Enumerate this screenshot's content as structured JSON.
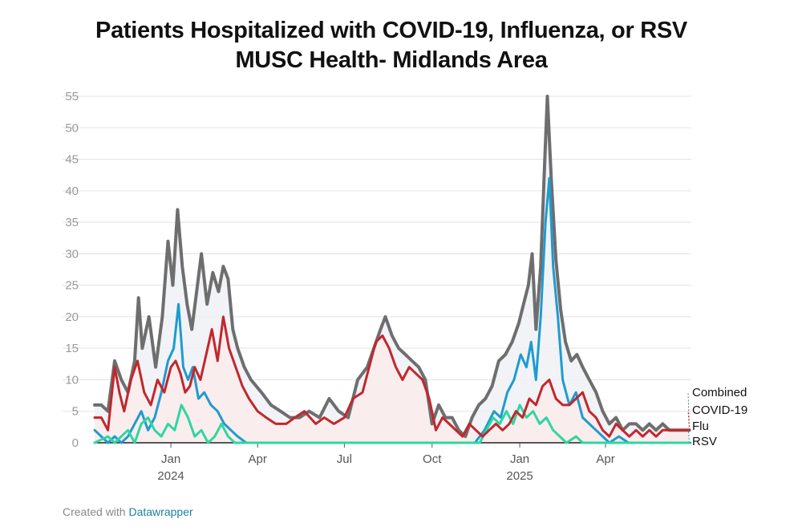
{
  "title_line1": "Patients Hospitalized with COVID-19, Influenza, or RSV",
  "title_line2": "MUSC Health- Midlands Area",
  "credit": {
    "prefix": "Created with ",
    "link": "Datawrapper"
  },
  "chart_data": {
    "type": "line",
    "y_ticks": [
      0,
      5,
      10,
      15,
      20,
      25,
      30,
      35,
      40,
      45,
      50,
      55
    ],
    "ylim": [
      0,
      55
    ],
    "xlim": [
      "2023-10-13",
      "2025-06-30"
    ],
    "x_ticks": [
      {
        "date": "2024-01-01",
        "label": "Jan",
        "sub": "2024"
      },
      {
        "date": "2024-04-01",
        "label": "Apr",
        "sub": ""
      },
      {
        "date": "2024-07-01",
        "label": "Jul",
        "sub": ""
      },
      {
        "date": "2024-10-01",
        "label": "Oct",
        "sub": ""
      },
      {
        "date": "2025-01-01",
        "label": "Jan",
        "sub": "2025"
      },
      {
        "date": "2025-04-01",
        "label": "Apr",
        "sub": ""
      }
    ],
    "grid": true,
    "legend": "right-end labels",
    "series": [
      {
        "name": "Combined",
        "color": "#6e6e6e",
        "fill": "#eef1f4",
        "points": [
          [
            "2023-10-13",
            6
          ],
          [
            "2023-10-20",
            6
          ],
          [
            "2023-10-27",
            5
          ],
          [
            "2023-11-03",
            13
          ],
          [
            "2023-11-10",
            10
          ],
          [
            "2023-11-17",
            8
          ],
          [
            "2023-11-24",
            13
          ],
          [
            "2023-11-28",
            23
          ],
          [
            "2023-12-02",
            15
          ],
          [
            "2023-12-09",
            20
          ],
          [
            "2023-12-16",
            12
          ],
          [
            "2023-12-23",
            20
          ],
          [
            "2023-12-29",
            32
          ],
          [
            "2024-01-03",
            25
          ],
          [
            "2024-01-08",
            37
          ],
          [
            "2024-01-13",
            28
          ],
          [
            "2024-01-18",
            22
          ],
          [
            "2024-01-23",
            18
          ],
          [
            "2024-01-28",
            24
          ],
          [
            "2024-02-02",
            30
          ],
          [
            "2024-02-08",
            22
          ],
          [
            "2024-02-14",
            27
          ],
          [
            "2024-02-20",
            24
          ],
          [
            "2024-02-25",
            28
          ],
          [
            "2024-03-01",
            26
          ],
          [
            "2024-03-06",
            18
          ],
          [
            "2024-03-11",
            15
          ],
          [
            "2024-03-18",
            12
          ],
          [
            "2024-03-25",
            10
          ],
          [
            "2024-04-05",
            8
          ],
          [
            "2024-04-15",
            6
          ],
          [
            "2024-04-25",
            5
          ],
          [
            "2024-05-05",
            4
          ],
          [
            "2024-05-15",
            4
          ],
          [
            "2024-05-25",
            5
          ],
          [
            "2024-06-05",
            4
          ],
          [
            "2024-06-15",
            7
          ],
          [
            "2024-06-25",
            5
          ],
          [
            "2024-07-05",
            4
          ],
          [
            "2024-07-15",
            10
          ],
          [
            "2024-07-25",
            12
          ],
          [
            "2024-08-01",
            15
          ],
          [
            "2024-08-08",
            18
          ],
          [
            "2024-08-13",
            20
          ],
          [
            "2024-08-20",
            17
          ],
          [
            "2024-08-27",
            15
          ],
          [
            "2024-09-03",
            14
          ],
          [
            "2024-09-10",
            13
          ],
          [
            "2024-09-17",
            12
          ],
          [
            "2024-09-24",
            10
          ],
          [
            "2024-10-01",
            3
          ],
          [
            "2024-10-08",
            6
          ],
          [
            "2024-10-15",
            4
          ],
          [
            "2024-10-22",
            4
          ],
          [
            "2024-10-29",
            2
          ],
          [
            "2024-11-05",
            1
          ],
          [
            "2024-11-12",
            4
          ],
          [
            "2024-11-19",
            6
          ],
          [
            "2024-11-26",
            7
          ],
          [
            "2024-12-03",
            9
          ],
          [
            "2024-12-10",
            13
          ],
          [
            "2024-12-17",
            14
          ],
          [
            "2024-12-24",
            16
          ],
          [
            "2024-12-31",
            19
          ],
          [
            "2025-01-05",
            22
          ],
          [
            "2025-01-10",
            25
          ],
          [
            "2025-01-14",
            30
          ],
          [
            "2025-01-18",
            18
          ],
          [
            "2025-01-23",
            28
          ],
          [
            "2025-01-27",
            44
          ],
          [
            "2025-01-30",
            55
          ],
          [
            "2025-02-03",
            42
          ],
          [
            "2025-02-08",
            29
          ],
          [
            "2025-02-13",
            21
          ],
          [
            "2025-02-18",
            16
          ],
          [
            "2025-02-24",
            13
          ],
          [
            "2025-03-02",
            14
          ],
          [
            "2025-03-08",
            12
          ],
          [
            "2025-03-15",
            10
          ],
          [
            "2025-03-22",
            8
          ],
          [
            "2025-03-29",
            5
          ],
          [
            "2025-04-05",
            3
          ],
          [
            "2025-04-12",
            4
          ],
          [
            "2025-04-19",
            2
          ],
          [
            "2025-04-26",
            3
          ],
          [
            "2025-05-03",
            3
          ],
          [
            "2025-05-10",
            2
          ],
          [
            "2025-05-17",
            3
          ],
          [
            "2025-05-24",
            2
          ],
          [
            "2025-05-31",
            3
          ],
          [
            "2025-06-07",
            2
          ],
          [
            "2025-06-14",
            2
          ],
          [
            "2025-06-21",
            2
          ],
          [
            "2025-06-28",
            2
          ]
        ]
      },
      {
        "name": "COVID-19",
        "color": "#c1272d",
        "fill": "#fbebeb",
        "points": [
          [
            "2023-10-13",
            4
          ],
          [
            "2023-10-20",
            4
          ],
          [
            "2023-10-27",
            2
          ],
          [
            "2023-11-03",
            12
          ],
          [
            "2023-11-08",
            8
          ],
          [
            "2023-11-13",
            5
          ],
          [
            "2023-11-20",
            10
          ],
          [
            "2023-11-27",
            13
          ],
          [
            "2023-12-04",
            8
          ],
          [
            "2023-12-11",
            6
          ],
          [
            "2023-12-18",
            10
          ],
          [
            "2023-12-25",
            8
          ],
          [
            "2024-01-01",
            12
          ],
          [
            "2024-01-06",
            13
          ],
          [
            "2024-01-11",
            11
          ],
          [
            "2024-01-16",
            8
          ],
          [
            "2024-01-21",
            9
          ],
          [
            "2024-01-26",
            12
          ],
          [
            "2024-02-01",
            10
          ],
          [
            "2024-02-07",
            14
          ],
          [
            "2024-02-13",
            18
          ],
          [
            "2024-02-19",
            13
          ],
          [
            "2024-02-25",
            20
          ],
          [
            "2024-03-02",
            15
          ],
          [
            "2024-03-09",
            12
          ],
          [
            "2024-03-16",
            9
          ],
          [
            "2024-03-23",
            7
          ],
          [
            "2024-04-01",
            5
          ],
          [
            "2024-04-10",
            4
          ],
          [
            "2024-04-20",
            3
          ],
          [
            "2024-05-01",
            3
          ],
          [
            "2024-05-10",
            4
          ],
          [
            "2024-05-20",
            5
          ],
          [
            "2024-06-01",
            3
          ],
          [
            "2024-06-10",
            4
          ],
          [
            "2024-06-20",
            3
          ],
          [
            "2024-07-01",
            4
          ],
          [
            "2024-07-10",
            7
          ],
          [
            "2024-07-20",
            8
          ],
          [
            "2024-07-27",
            12
          ],
          [
            "2024-08-03",
            16
          ],
          [
            "2024-08-10",
            17
          ],
          [
            "2024-08-17",
            15
          ],
          [
            "2024-08-24",
            12
          ],
          [
            "2024-08-31",
            10
          ],
          [
            "2024-09-07",
            12
          ],
          [
            "2024-09-14",
            11
          ],
          [
            "2024-09-21",
            10
          ],
          [
            "2024-09-28",
            7
          ],
          [
            "2024-10-05",
            2
          ],
          [
            "2024-10-12",
            4
          ],
          [
            "2024-10-19",
            3
          ],
          [
            "2024-10-26",
            2
          ],
          [
            "2024-11-02",
            1
          ],
          [
            "2024-11-09",
            3
          ],
          [
            "2024-11-16",
            2
          ],
          [
            "2024-11-23",
            1
          ],
          [
            "2024-11-30",
            2
          ],
          [
            "2024-12-07",
            3
          ],
          [
            "2024-12-14",
            2
          ],
          [
            "2024-12-21",
            3
          ],
          [
            "2024-12-28",
            5
          ],
          [
            "2025-01-04",
            4
          ],
          [
            "2025-01-11",
            7
          ],
          [
            "2025-01-18",
            6
          ],
          [
            "2025-01-25",
            9
          ],
          [
            "2025-02-01",
            10
          ],
          [
            "2025-02-08",
            7
          ],
          [
            "2025-02-15",
            6
          ],
          [
            "2025-02-22",
            6
          ],
          [
            "2025-03-01",
            7
          ],
          [
            "2025-03-08",
            8
          ],
          [
            "2025-03-15",
            5
          ],
          [
            "2025-03-22",
            4
          ],
          [
            "2025-03-29",
            2
          ],
          [
            "2025-04-05",
            1
          ],
          [
            "2025-04-12",
            3
          ],
          [
            "2025-04-19",
            2
          ],
          [
            "2025-04-26",
            1
          ],
          [
            "2025-05-03",
            2
          ],
          [
            "2025-05-10",
            1
          ],
          [
            "2025-05-17",
            2
          ],
          [
            "2025-05-24",
            1
          ],
          [
            "2025-05-31",
            2
          ],
          [
            "2025-06-07",
            2
          ],
          [
            "2025-06-14",
            2
          ],
          [
            "2025-06-21",
            2
          ],
          [
            "2025-06-28",
            2
          ]
        ]
      },
      {
        "name": "Flu",
        "color": "#1f9bcf",
        "fill": "none",
        "points": [
          [
            "2023-10-13",
            2
          ],
          [
            "2023-10-20",
            1
          ],
          [
            "2023-10-27",
            0
          ],
          [
            "2023-11-03",
            1
          ],
          [
            "2023-11-10",
            0
          ],
          [
            "2023-11-17",
            1
          ],
          [
            "2023-11-24",
            3
          ],
          [
            "2023-12-01",
            5
          ],
          [
            "2023-12-08",
            2
          ],
          [
            "2023-12-15",
            4
          ],
          [
            "2023-12-22",
            8
          ],
          [
            "2023-12-29",
            13
          ],
          [
            "2024-01-04",
            15
          ],
          [
            "2024-01-09",
            22
          ],
          [
            "2024-01-14",
            12
          ],
          [
            "2024-01-19",
            10
          ],
          [
            "2024-01-24",
            12
          ],
          [
            "2024-01-30",
            7
          ],
          [
            "2024-02-05",
            8
          ],
          [
            "2024-02-12",
            6
          ],
          [
            "2024-02-19",
            5
          ],
          [
            "2024-02-26",
            3
          ],
          [
            "2024-03-04",
            2
          ],
          [
            "2024-03-11",
            1
          ],
          [
            "2024-03-20",
            0
          ],
          [
            "2024-04-01",
            0
          ],
          [
            "2024-07-01",
            0
          ],
          [
            "2024-10-01",
            0
          ],
          [
            "2024-11-15",
            0
          ],
          [
            "2024-11-25",
            2
          ],
          [
            "2024-12-05",
            5
          ],
          [
            "2024-12-12",
            4
          ],
          [
            "2024-12-19",
            8
          ],
          [
            "2024-12-26",
            10
          ],
          [
            "2025-01-02",
            14
          ],
          [
            "2025-01-08",
            12
          ],
          [
            "2025-01-13",
            16
          ],
          [
            "2025-01-18",
            10
          ],
          [
            "2025-01-23",
            20
          ],
          [
            "2025-01-28",
            35
          ],
          [
            "2025-02-01",
            42
          ],
          [
            "2025-02-05",
            28
          ],
          [
            "2025-02-10",
            20
          ],
          [
            "2025-02-15",
            10
          ],
          [
            "2025-02-22",
            6
          ],
          [
            "2025-03-01",
            8
          ],
          [
            "2025-03-08",
            4
          ],
          [
            "2025-03-15",
            3
          ],
          [
            "2025-03-22",
            2
          ],
          [
            "2025-03-29",
            1
          ],
          [
            "2025-04-05",
            0
          ],
          [
            "2025-04-15",
            1
          ],
          [
            "2025-04-25",
            0
          ],
          [
            "2025-05-10",
            0
          ],
          [
            "2025-06-28",
            0
          ]
        ]
      },
      {
        "name": "RSV",
        "color": "#2fd6a1",
        "fill": "none",
        "points": [
          [
            "2023-10-13",
            0
          ],
          [
            "2023-10-27",
            1
          ],
          [
            "2023-11-03",
            0
          ],
          [
            "2023-11-10",
            1
          ],
          [
            "2023-11-17",
            2
          ],
          [
            "2023-11-24",
            0
          ],
          [
            "2023-12-01",
            3
          ],
          [
            "2023-12-08",
            4
          ],
          [
            "2023-12-15",
            2
          ],
          [
            "2023-12-22",
            1
          ],
          [
            "2023-12-29",
            3
          ],
          [
            "2024-01-05",
            2
          ],
          [
            "2024-01-12",
            6
          ],
          [
            "2024-01-19",
            4
          ],
          [
            "2024-01-26",
            1
          ],
          [
            "2024-02-02",
            2
          ],
          [
            "2024-02-09",
            0
          ],
          [
            "2024-02-16",
            1
          ],
          [
            "2024-02-23",
            3
          ],
          [
            "2024-03-01",
            1
          ],
          [
            "2024-03-08",
            0
          ],
          [
            "2024-03-20",
            0
          ],
          [
            "2024-07-01",
            0
          ],
          [
            "2024-10-01",
            0
          ],
          [
            "2024-11-20",
            0
          ],
          [
            "2024-11-27",
            2
          ],
          [
            "2024-12-04",
            4
          ],
          [
            "2024-12-11",
            3
          ],
          [
            "2024-12-18",
            5
          ],
          [
            "2024-12-25",
            3
          ],
          [
            "2025-01-01",
            6
          ],
          [
            "2025-01-08",
            4
          ],
          [
            "2025-01-15",
            5
          ],
          [
            "2025-01-22",
            3
          ],
          [
            "2025-01-29",
            4
          ],
          [
            "2025-02-05",
            2
          ],
          [
            "2025-02-12",
            1
          ],
          [
            "2025-02-19",
            0
          ],
          [
            "2025-03-01",
            1
          ],
          [
            "2025-03-08",
            0
          ],
          [
            "2025-04-01",
            0
          ],
          [
            "2025-06-28",
            0
          ]
        ]
      }
    ]
  }
}
